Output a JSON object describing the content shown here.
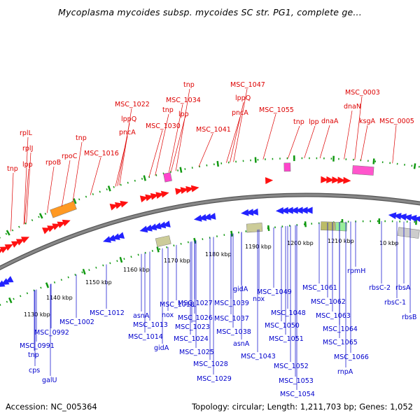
{
  "title": "Mycoplasma mycoides subsp. mycoides SC str. PG1, complete ge...",
  "footer": {
    "accession": "Accession: NC_005364",
    "summary": "Topology: circular; Length: 1,211,703 bp; Genes: 1,052"
  },
  "colors": {
    "forward_label": "#dd0000",
    "reverse_label": "#0000cc",
    "backbone": "#888888",
    "tick": "#119911"
  },
  "scale_ticks": [
    "1130 kbp",
    "1140 kbp",
    "1150 kbp",
    "1160 kbp",
    "1170 kbp",
    "1180 kbp",
    "1190 kbp",
    "1200 kbp",
    "1210 kbp",
    "10 kbp"
  ],
  "forward_labels": [
    "tnp",
    "lpp",
    "rplJ",
    "rplL",
    "rpoB",
    "rpoC",
    "tnp",
    "MSC_1016",
    "pncA",
    "lppQ",
    "MSC_1022",
    "MSC_1030",
    "tnp",
    "lpp",
    "tnp",
    "MSC_1034",
    "MSC_1041",
    "pncA",
    "lppQ",
    "MSC_1047",
    "MSC_1055",
    "tnp",
    "lpp",
    "dnaA",
    "dnaN",
    "MSC_0003",
    "ksgA",
    "MSC_0005"
  ],
  "reverse_labels": [
    "MSC_1012",
    "asnA",
    "MSC_1013",
    "MSC_1014",
    "MSC_1018",
    "nox",
    "gidA",
    "MSC_1027",
    "MSC_1026",
    "MSC_1023",
    "MSC_1024",
    "MSC_1025",
    "MSC_1028",
    "MSC_1029",
    "MSC_1039",
    "gidA",
    "nox",
    "MSC_1037",
    "MSC_1038",
    "asnA",
    "MSC_1043",
    "MSC_1049",
    "MSC_1048",
    "MSC_1050",
    "MSC_1051",
    "MSC_1052",
    "MSC_1053",
    "MSC_1054",
    "MSC_1061",
    "MSC_1062",
    "MSC_1063",
    "MSC_1064",
    "MSC_1065",
    "MSC_1066",
    "rnpA",
    "rpmH",
    "rbsC-2",
    "rbsC-1",
    "rbsA",
    "rbsB",
    "MSC_1002",
    "MSC_0992",
    "MSC_0991",
    "tnp",
    "cps",
    "galU"
  ]
}
